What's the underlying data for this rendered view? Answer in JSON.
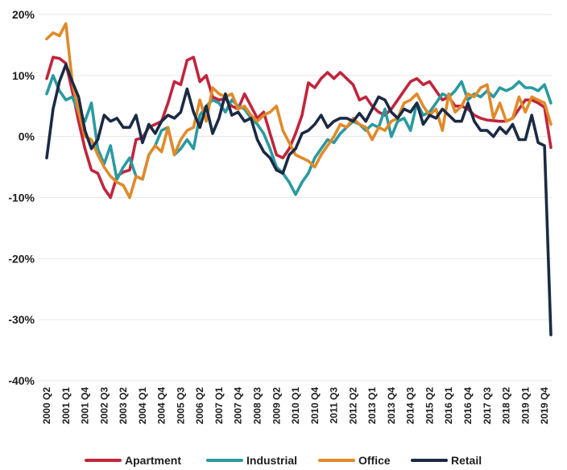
{
  "chart_data": {
    "type": "line",
    "title": "",
    "xlabel": "",
    "ylabel": "",
    "ylim": [
      -40,
      20
    ],
    "grid": true,
    "legend_position": "bottom",
    "y_ticks": [
      20,
      10,
      0,
      -10,
      -20,
      -30,
      -40
    ],
    "y_tick_labels": [
      "20%",
      "10%",
      "0%",
      "-10%",
      "-20%",
      "-30%",
      "-40%"
    ],
    "x_ticks": [
      "2000 Q2",
      "2001 Q1",
      "2001 Q4",
      "2002 Q3",
      "2003 Q2",
      "2004 Q1",
      "2004 Q4",
      "2005 Q3",
      "2006 Q2",
      "2007 Q1",
      "2007 Q4",
      "2008 Q3",
      "2009 Q2",
      "2010 Q1",
      "2010 Q4",
      "2011 Q3",
      "2012 Q2",
      "2013 Q1",
      "2013 Q4",
      "2014 Q3",
      "2015 Q2",
      "2016 Q1",
      "2016 Q4",
      "2017 Q3",
      "2018 Q2",
      "2019 Q1",
      "2019 Q4"
    ],
    "x": [
      "2000 Q2",
      "2000 Q3",
      "2000 Q4",
      "2001 Q1",
      "2001 Q2",
      "2001 Q3",
      "2001 Q4",
      "2002 Q1",
      "2002 Q2",
      "2002 Q3",
      "2002 Q4",
      "2003 Q1",
      "2003 Q2",
      "2003 Q3",
      "2003 Q4",
      "2004 Q1",
      "2004 Q2",
      "2004 Q3",
      "2004 Q4",
      "2005 Q1",
      "2005 Q2",
      "2005 Q3",
      "2005 Q4",
      "2006 Q1",
      "2006 Q2",
      "2006 Q3",
      "2006 Q4",
      "2007 Q1",
      "2007 Q2",
      "2007 Q3",
      "2007 Q4",
      "2008 Q1",
      "2008 Q2",
      "2008 Q3",
      "2008 Q4",
      "2009 Q1",
      "2009 Q2",
      "2009 Q3",
      "2009 Q4",
      "2010 Q1",
      "2010 Q2",
      "2010 Q3",
      "2010 Q4",
      "2011 Q1",
      "2011 Q2",
      "2011 Q3",
      "2011 Q4",
      "2012 Q1",
      "2012 Q2",
      "2012 Q3",
      "2012 Q4",
      "2013 Q1",
      "2013 Q2",
      "2013 Q3",
      "2013 Q4",
      "2014 Q1",
      "2014 Q2",
      "2014 Q3",
      "2014 Q4",
      "2015 Q1",
      "2015 Q2",
      "2015 Q3",
      "2015 Q4",
      "2016 Q1",
      "2016 Q2",
      "2016 Q3",
      "2016 Q4",
      "2017 Q1",
      "2017 Q2",
      "2017 Q3",
      "2017 Q4",
      "2018 Q1",
      "2018 Q2",
      "2018 Q3",
      "2018 Q4",
      "2019 Q1",
      "2019 Q2",
      "2019 Q3",
      "2019 Q4",
      "2020 Q1"
    ],
    "series": [
      {
        "name": "Apartment",
        "color": "#c0253d",
        "values": [
          9.5,
          13.0,
          12.8,
          12.0,
          7.5,
          2.5,
          -2.0,
          -5.5,
          -6.0,
          -8.5,
          -10.0,
          -6.5,
          -5.8,
          -5.5,
          -0.5,
          -0.2,
          1.5,
          2.0,
          2.5,
          5.5,
          9.0,
          8.5,
          12.5,
          13.0,
          9.0,
          10.0,
          6.5,
          6.0,
          6.2,
          5.0,
          4.5,
          7.0,
          5.0,
          3.0,
          4.0,
          0.5,
          -3.0,
          -3.5,
          -2.0,
          0.5,
          3.5,
          8.8,
          8.0,
          9.5,
          10.5,
          9.5,
          10.5,
          9.5,
          8.5,
          6.0,
          6.5,
          5.0,
          4.0,
          3.5,
          4.5,
          6.0,
          7.5,
          9.0,
          9.5,
          8.5,
          9.0,
          7.5,
          6.0,
          6.5,
          5.0,
          5.0,
          4.5,
          3.5,
          3.0,
          2.7,
          2.6,
          2.5,
          2.5,
          3.0,
          4.5,
          6.0,
          6.0,
          5.5,
          4.8,
          -1.8
        ]
      },
      {
        "name": "Industrial",
        "color": "#2a9aa0",
        "values": [
          7.0,
          10.0,
          7.5,
          6.0,
          6.5,
          4.0,
          2.5,
          5.5,
          -2.0,
          -4.5,
          -1.5,
          -7.0,
          -5.0,
          -3.5,
          -6.5,
          -7.0,
          -3.0,
          -1.5,
          1.0,
          1.5,
          -3.0,
          -2.0,
          -0.5,
          -2.0,
          3.5,
          5.0,
          6.0,
          5.5,
          4.0,
          6.0,
          5.0,
          4.5,
          3.0,
          2.0,
          0.5,
          -2.0,
          -5.0,
          -6.0,
          -7.5,
          -9.5,
          -7.5,
          -6.0,
          -3.5,
          -2.0,
          -0.5,
          -1.0,
          0.5,
          1.5,
          2.5,
          2.0,
          1.0,
          2.0,
          1.5,
          4.5,
          0.0,
          2.5,
          3.0,
          1.0,
          5.5,
          3.5,
          4.0,
          5.5,
          7.0,
          6.5,
          7.5,
          9.0,
          6.0,
          7.0,
          6.5,
          7.5,
          6.5,
          8.0,
          7.5,
          8.0,
          9.0,
          8.0,
          8.0,
          7.5,
          8.5,
          5.5
        ]
      },
      {
        "name": "Office",
        "color": "#e08a2a",
        "values": [
          16.0,
          17.0,
          16.5,
          18.5,
          9.0,
          4.0,
          0.0,
          -0.5,
          -3.0,
          -5.0,
          -6.5,
          -7.5,
          -8.0,
          -10.0,
          -6.5,
          -7.0,
          -3.0,
          -1.5,
          -2.5,
          1.5,
          -3.0,
          -0.5,
          1.0,
          1.5,
          6.0,
          2.5,
          8.0,
          7.0,
          6.5,
          7.0,
          4.5,
          5.0,
          3.5,
          2.5,
          3.5,
          4.0,
          5.0,
          1.0,
          -1.0,
          -3.0,
          -3.5,
          -4.0,
          -5.0,
          -3.0,
          -1.5,
          0.0,
          2.0,
          1.5,
          3.0,
          2.0,
          1.5,
          -0.5,
          1.5,
          1.0,
          2.5,
          3.0,
          5.5,
          6.0,
          7.0,
          5.0,
          3.5,
          4.5,
          1.0,
          7.0,
          4.0,
          5.0,
          7.0,
          6.5,
          8.0,
          8.5,
          3.0,
          5.5,
          2.5,
          3.0,
          6.5,
          4.0,
          6.5,
          6.0,
          5.5,
          2.0
        ]
      },
      {
        "name": "Retail",
        "color": "#1b2a44",
        "values": [
          -3.5,
          4.5,
          9.0,
          11.8,
          9.0,
          6.5,
          1.0,
          -2.0,
          -0.5,
          3.5,
          2.5,
          3.0,
          1.5,
          1.5,
          3.5,
          -1.0,
          2.0,
          0.5,
          2.5,
          3.5,
          3.0,
          4.0,
          7.8,
          4.0,
          1.5,
          5.0,
          0.5,
          3.0,
          7.0,
          3.5,
          4.0,
          2.5,
          3.0,
          -0.5,
          -2.5,
          -3.5,
          -5.5,
          -6.0,
          -3.0,
          -2.0,
          0.5,
          1.0,
          2.0,
          3.5,
          1.5,
          2.5,
          3.0,
          3.0,
          2.5,
          3.8,
          2.5,
          4.5,
          6.5,
          6.0,
          4.0,
          3.0,
          4.5,
          4.0,
          5.5,
          2.0,
          3.5,
          3.0,
          4.5,
          3.5,
          2.5,
          2.5,
          5.5,
          2.5,
          1.0,
          1.0,
          0.0,
          1.5,
          0.5,
          2.0,
          -0.5,
          -0.5,
          3.5,
          -1.0,
          -1.5,
          -32.5
        ]
      }
    ]
  }
}
